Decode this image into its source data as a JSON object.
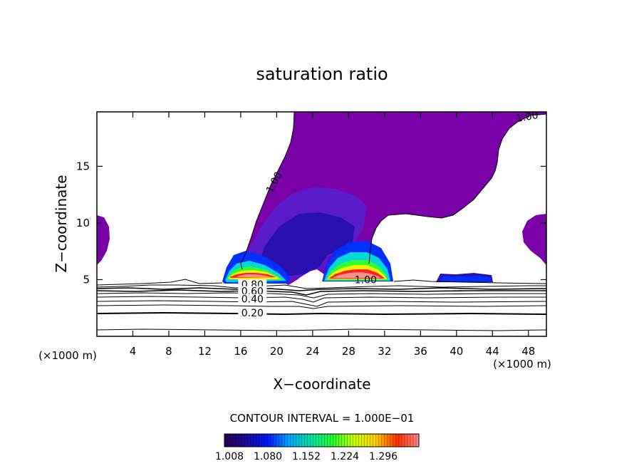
{
  "chart_data": {
    "type": "heatmap",
    "title": "saturation ratio",
    "xlabel": "X−coordinate",
    "ylabel": "Z−coordinate",
    "x_unit": "(×1000 m)",
    "z_unit": "(×1000 m)",
    "xlim": [
      0,
      50
    ],
    "ylim": [
      0,
      19.8
    ],
    "x_ticks": [
      4,
      8,
      12,
      16,
      20,
      24,
      28,
      32,
      36,
      40,
      44,
      48
    ],
    "y_ticks": [
      5,
      10,
      15
    ],
    "contour_labels": [
      {
        "text": "1.00",
        "x": 19.9,
        "z": 13.5,
        "angle": -62
      },
      {
        "text": "1.00",
        "x": 47.9,
        "z": 19.2,
        "angle": -10
      },
      {
        "text": "1.00",
        "x": 29.9,
        "z": 4.8,
        "angle": 0
      },
      {
        "text": "0.80",
        "x": 17.3,
        "z": 4.4,
        "angle": 0
      },
      {
        "text": "0.60",
        "x": 17.3,
        "z": 3.8,
        "angle": 0
      },
      {
        "text": "0.40",
        "x": 17.3,
        "z": 3.1,
        "angle": 0
      },
      {
        "text": "0.20",
        "x": 17.3,
        "z": 1.9,
        "angle": 0
      }
    ],
    "contour_interval": "CONTOUR INTERVAL = 1.000E−01",
    "colorbar": {
      "ticks": [
        "1.008",
        "1.080",
        "1.152",
        "1.224",
        "1.296"
      ],
      "colors": [
        "#2a0050",
        "#1a0a9a",
        "#0018ff",
        "#00a8ff",
        "#00e0a0",
        "#20ff30",
        "#c8ff00",
        "#ffd000",
        "#ff3000",
        "#ff8888"
      ]
    },
    "fill_colors": {
      "background_region": "#7a00a8",
      "mid": "#5a1ac8",
      "deep": "#2a10b0",
      "blue": "#0030ff",
      "cyan": "#00d8d8",
      "green": "#30ff30",
      "yellow": "#f8f000",
      "red": "#ff2020",
      "pink": "#ff9090"
    }
  }
}
